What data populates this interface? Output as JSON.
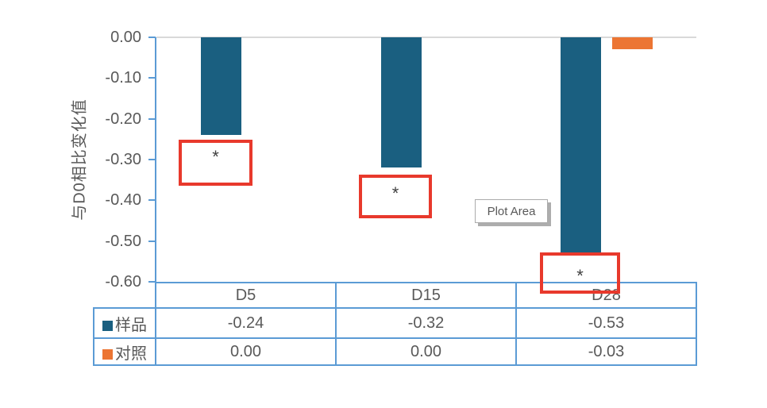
{
  "chart_data": {
    "type": "bar",
    "title": "",
    "xlabel": "",
    "ylabel": "与D0相比变化值",
    "ylim": [
      -0.6,
      0.0
    ],
    "y_ticks": [
      "0.00",
      "-0.10",
      "-0.20",
      "-0.30",
      "-0.40",
      "-0.50",
      "-0.60"
    ],
    "categories": [
      "D5",
      "D15",
      "D28"
    ],
    "series": [
      {
        "name": "样品",
        "color": "#1A5F80",
        "values": [
          -0.24,
          -0.32,
          -0.53
        ]
      },
      {
        "name": "对照",
        "color": "#EC7533",
        "values": [
          0.0,
          0.0,
          -0.03
        ]
      }
    ],
    "grid": "zero-baseline-only",
    "legend_position": "data-table-left",
    "annotations": [
      {
        "label": "*",
        "target": "样品 D5"
      },
      {
        "label": "*",
        "target": "样品 D15"
      },
      {
        "label": "*",
        "target": "样品 D28"
      }
    ]
  },
  "plot_area_tooltip": {
    "label": "Plot Area"
  },
  "data_table": {
    "rows": [
      {
        "legend": "样品",
        "values": [
          "-0.24",
          "-0.32",
          "-0.53"
        ]
      },
      {
        "legend": "对照",
        "values": [
          "0.00",
          "0.00",
          "-0.03"
        ]
      }
    ]
  },
  "colors": {
    "axis_line": "#5B9BD5",
    "table_border": "#5B9BD5",
    "zero_gridline": "#D9D9D9",
    "annotation_box": "#E8392C",
    "text": "#595959",
    "series_sample": "#1A5F80",
    "series_control": "#EC7533"
  }
}
